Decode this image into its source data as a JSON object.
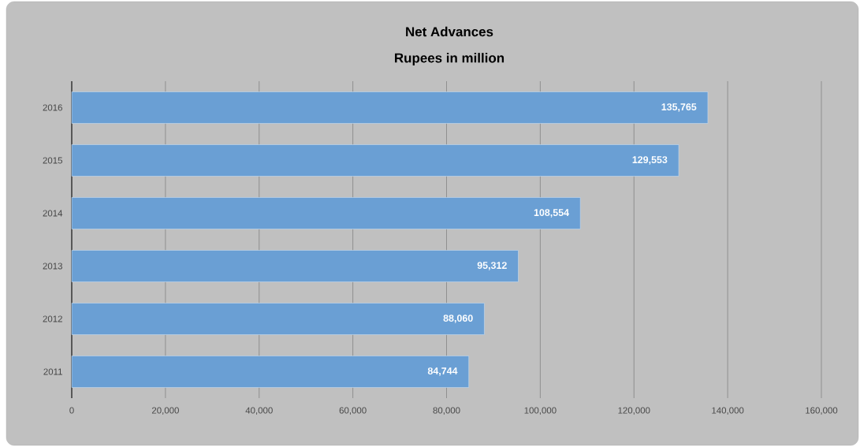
{
  "chart_data": {
    "type": "bar",
    "orientation": "horizontal",
    "title": "Net Advances",
    "subtitle": "Rupees in million",
    "categories": [
      "2016",
      "2015",
      "2014",
      "2013",
      "2012",
      "2011"
    ],
    "values": [
      135765,
      129553,
      108554,
      95312,
      88060,
      84744
    ],
    "value_labels": [
      "135,765",
      "129,553",
      "108,554",
      "95,312",
      "88,060",
      "84,744"
    ],
    "color": "#6a9fd4",
    "xlim": [
      0,
      160000
    ],
    "xticks": [
      0,
      {
        "value": 20000,
        "label": "20,000"
      },
      {
        "value": 40000,
        "label": "40,000"
      },
      {
        "value": 60000,
        "label": "60,000"
      },
      {
        "value": 80000,
        "label": "80,000"
      },
      {
        "value": 100000,
        "label": "100,000"
      },
      {
        "value": 120000,
        "label": "120,000"
      },
      {
        "value": 140000,
        "label": "140,000"
      },
      {
        "value": 160000,
        "label": "160,000"
      }
    ],
    "grid": "x"
  }
}
